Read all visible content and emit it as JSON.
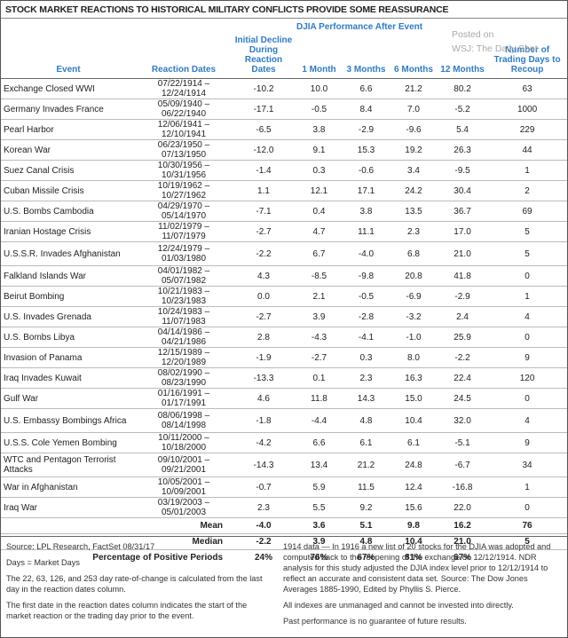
{
  "title": "STOCK MARKET REACTIONS TO HISTORICAL MILITARY CONFLICTS PROVIDE SOME REASSURANCE",
  "watermark": [
    "Posted on",
    "WSJ: The Daily Shot"
  ],
  "table": {
    "group_header": "DJIA Performance After Event",
    "columns": [
      "Event",
      "Reaction Dates",
      "Initial Decline During Reaction Dates",
      "1 Month",
      "3 Months",
      "6 Months",
      "12 Months",
      "Number of Trading Days to Recoup"
    ],
    "rows": [
      [
        "Exchange Closed WWI",
        "07/22/1914 – 12/24/1914",
        "-10.2",
        "10.0",
        "6.6",
        "21.2",
        "80.2",
        "63"
      ],
      [
        "Germany Invades France",
        "05/09/1940 – 06/22/1940",
        "-17.1",
        "-0.5",
        "8.4",
        "7.0",
        "-5.2",
        "1000"
      ],
      [
        "Pearl Harbor",
        "12/06/1941 – 12/10/1941",
        "-6.5",
        "3.8",
        "-2.9",
        "-9.6",
        "5.4",
        "229"
      ],
      [
        "Korean War",
        "06/23/1950 – 07/13/1950",
        "-12.0",
        "9.1",
        "15.3",
        "19.2",
        "26.3",
        "44"
      ],
      [
        "Suez Canal Crisis",
        "10/30/1956 – 10/31/1956",
        "-1.4",
        "0.3",
        "-0.6",
        "3.4",
        "-9.5",
        "1"
      ],
      [
        "Cuban Missile Crisis",
        "10/19/1962 – 10/27/1962",
        "1.1",
        "12.1",
        "17.1",
        "24.2",
        "30.4",
        "2"
      ],
      [
        "U.S. Bombs Cambodia",
        "04/29/1970 – 05/14/1970",
        "-7.1",
        "0.4",
        "3.8",
        "13.5",
        "36.7",
        "69"
      ],
      [
        "Iranian Hostage Crisis",
        "11/02/1979 – 11/07/1979",
        "-2.7",
        "4.7",
        "11.1",
        "2.3",
        "17.0",
        "5"
      ],
      [
        "U.S.S.R. Invades Afghanistan",
        "12/24/1979 – 01/03/1980",
        "-2.2",
        "6.7",
        "-4.0",
        "6.8",
        "21.0",
        "5"
      ],
      [
        "Falkland Islands War",
        "04/01/1982 – 05/07/1982",
        "4.3",
        "-8.5",
        "-9.8",
        "20.8",
        "41.8",
        "0"
      ],
      [
        "Beirut Bombing",
        "10/21/1983 – 10/23/1983",
        "0.0",
        "2.1",
        "-0.5",
        "-6.9",
        "-2.9",
        "1"
      ],
      [
        "U.S. Invades Grenada",
        "10/24/1983 – 11/07/1983",
        "-2.7",
        "3.9",
        "-2.8",
        "-3.2",
        "2.4",
        "4"
      ],
      [
        "U.S. Bombs Libya",
        "04/14/1986 – 04/21/1986",
        "2.8",
        "-4.3",
        "-4.1",
        "-1.0",
        "25.9",
        "0"
      ],
      [
        "Invasion of Panama",
        "12/15/1989 – 12/20/1989",
        "-1.9",
        "-2.7",
        "0.3",
        "8.0",
        "-2.2",
        "9"
      ],
      [
        "Iraq Invades Kuwait",
        "08/02/1990 – 08/23/1990",
        "-13.3",
        "0.1",
        "2.3",
        "16.3",
        "22.4",
        "120"
      ],
      [
        "Gulf War",
        "01/16/1991 – 01/17/1991",
        "4.6",
        "11.8",
        "14.3",
        "15.0",
        "24.5",
        "0"
      ],
      [
        "U.S. Embassy Bombings Africa",
        "08/06/1998 – 08/14/1998",
        "-1.8",
        "-4.4",
        "4.8",
        "10.4",
        "32.0",
        "4"
      ],
      [
        "U.S.S. Cole Yemen Bombing",
        "10/11/2000 – 10/18/2000",
        "-4.2",
        "6.6",
        "6.1",
        "6.1",
        "-5.1",
        "9"
      ],
      [
        "WTC and Pentagon Terrorist Attacks",
        "09/10/2001 – 09/21/2001",
        "-14.3",
        "13.4",
        "21.2",
        "24.8",
        "-6.7",
        "34"
      ],
      [
        "War in Afghanistan",
        "10/05/2001 – 10/09/2001",
        "-0.7",
        "5.9",
        "11.5",
        "12.4",
        "-16.8",
        "1"
      ],
      [
        "Iraq War",
        "03/19/2003 – 05/01/2003",
        "2.3",
        "5.5",
        "9.2",
        "15.6",
        "22.0",
        "0"
      ]
    ],
    "summary": [
      [
        "Mean",
        "-4.0",
        "3.6",
        "5.1",
        "9.8",
        "16.2",
        "76"
      ],
      [
        "Median",
        "-2.2",
        "3.9",
        "4.8",
        "10.4",
        "21.0",
        "5"
      ],
      [
        "Percentage of Positive Periods",
        "24%",
        "76%",
        "67%",
        "81%",
        "67%"
      ]
    ]
  },
  "notes_left": [
    "Source: LPL Research, FactSet 08/31/17",
    "Days = Market Days",
    "The 22, 63, 126, and 253 day rate-of-change is calculated from the last day in the reaction dates column.",
    "The first date in the reaction dates column indicates the start of the market reaction or the trading day prior to the event."
  ],
  "notes_right": [
    "1914 data — In 1916 a new list of 20 stocks for the DJIA was adopted and computed back to the reopening of the exchange on 12/12/1914. NDR analysis for this study adjusted the DJIA index level prior to 12/12/1914 to reflect an accurate and consistent data set. Source: The Dow Jones Averages 1885-1990, Edited by Phyllis S. Pierce.",
    "All indexes are unmanaged and cannot be invested into directly.",
    "Past performance is no guarantee of future results."
  ]
}
